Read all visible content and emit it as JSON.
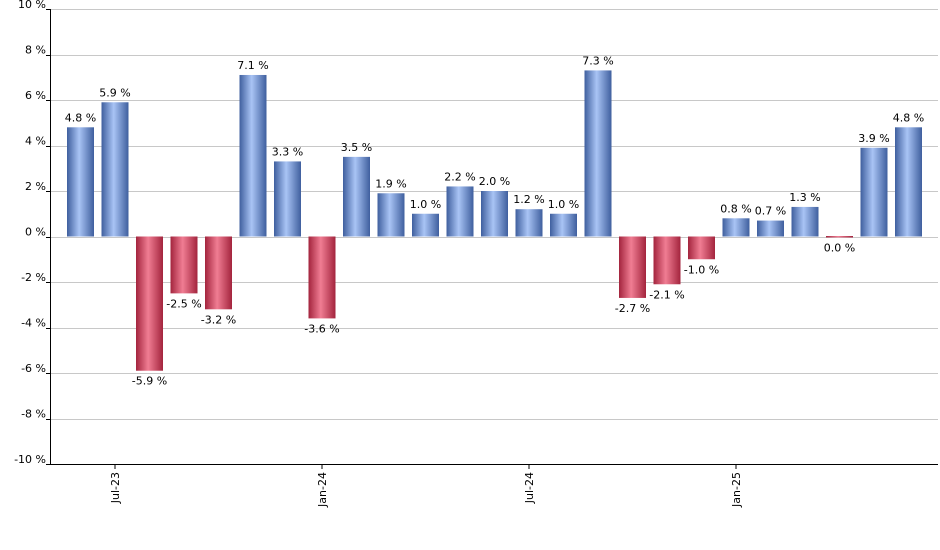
{
  "chart_data": {
    "type": "bar",
    "title": "",
    "xlabel": "",
    "ylabel": "",
    "ylim": [
      -10,
      10
    ],
    "y_ticks": [
      10,
      8,
      6,
      4,
      2,
      0,
      -2,
      -4,
      -6,
      -8,
      -10
    ],
    "y_tick_labels": [
      "10 %",
      "8 %",
      "6 %",
      "4 %",
      "2 %",
      "0 %",
      "-2 %",
      "-4 %",
      "-6 %",
      "-8 %",
      "-10 %"
    ],
    "grid": true,
    "x_tick_labels": [
      {
        "label": "Jul-23",
        "bar_index": 1
      },
      {
        "label": "Jan-24",
        "bar_index": 7
      },
      {
        "label": "Jul-24",
        "bar_index": 13
      },
      {
        "label": "Jan-25",
        "bar_index": 19
      }
    ],
    "values": [
      4.8,
      5.9,
      -5.9,
      -2.5,
      -3.2,
      7.1,
      3.3,
      -3.6,
      3.5,
      1.9,
      1.0,
      2.2,
      2.0,
      1.2,
      1.0,
      7.3,
      -2.7,
      -2.1,
      -1.0,
      0.8,
      0.7,
      1.3,
      0.0,
      3.9,
      4.8
    ],
    "value_labels": [
      "4.8 %",
      "5.9 %",
      "-5.9 %",
      "-2.5 %",
      "-3.2 %",
      "7.1 %",
      "3.3 %",
      "-3.6 %",
      "3.5 %",
      "1.9 %",
      "1.0 %",
      "2.2 %",
      "2.0 %",
      "1.2 %",
      "1.0 %",
      "7.3 %",
      "-2.7 %",
      "-2.1 %",
      "-1.0 %",
      "0.8 %",
      "0.7 %",
      "1.3 %",
      "0.0 %",
      "3.9 %",
      "4.8 %"
    ],
    "negative_flags": [
      false,
      false,
      true,
      true,
      true,
      false,
      false,
      true,
      false,
      false,
      false,
      false,
      false,
      false,
      false,
      false,
      true,
      true,
      true,
      false,
      false,
      false,
      true,
      false,
      false
    ],
    "colors": {
      "positive_light": "#a9c4f5",
      "positive_dark": "#3f5f9e",
      "negative_light": "#f07d93",
      "negative_dark": "#a3243d",
      "grid": "#c8c8c8",
      "axis": "#000000"
    }
  }
}
